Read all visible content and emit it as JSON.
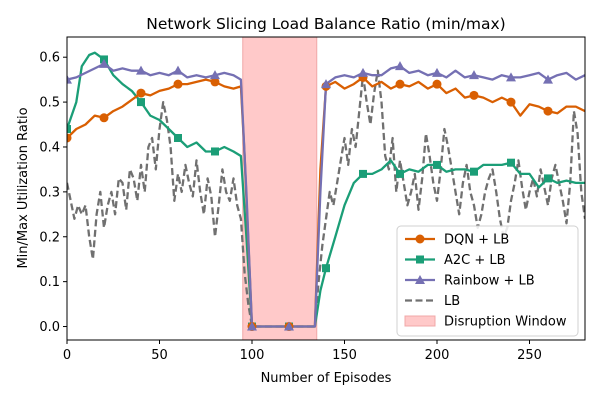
{
  "chart_data": {
    "type": "line",
    "title": "Network Slicing Load Balance Ratio (min/max)",
    "xlabel": "Number of Episodes",
    "ylabel": "Min/Max Utilization Ratio",
    "xlim": [
      0,
      280
    ],
    "ylim": [
      -0.03,
      0.645
    ],
    "xticks": [
      0,
      50,
      100,
      150,
      200,
      250
    ],
    "yticks": [
      0.0,
      0.1,
      0.2,
      0.3,
      0.4,
      0.5,
      0.6
    ],
    "grid": false,
    "legend_position": "lower-right",
    "shaded_region": {
      "label": "Disruption Window",
      "x_start": 95,
      "x_end": 135,
      "color": "#ffc9c9"
    },
    "series": [
      {
        "name": "DQN + LB",
        "color": "#d95f02",
        "style": "solid",
        "marker": "circle",
        "marker_every": 20,
        "points": [
          [
            0,
            0.42
          ],
          [
            5,
            0.44
          ],
          [
            10,
            0.45
          ],
          [
            15,
            0.47
          ],
          [
            20,
            0.465
          ],
          [
            25,
            0.48
          ],
          [
            30,
            0.49
          ],
          [
            35,
            0.505
          ],
          [
            40,
            0.52
          ],
          [
            45,
            0.515
          ],
          [
            50,
            0.525
          ],
          [
            55,
            0.53
          ],
          [
            60,
            0.54
          ],
          [
            65,
            0.54
          ],
          [
            70,
            0.545
          ],
          [
            75,
            0.55
          ],
          [
            80,
            0.545
          ],
          [
            85,
            0.535
          ],
          [
            90,
            0.53
          ],
          [
            94,
            0.535
          ],
          [
            96,
            0.38
          ],
          [
            100,
            0.0
          ],
          [
            105,
            0.0
          ],
          [
            110,
            0.0
          ],
          [
            115,
            0.0
          ],
          [
            120,
            0.0
          ],
          [
            125,
            0.0
          ],
          [
            130,
            0.0
          ],
          [
            134,
            0.0
          ],
          [
            137,
            0.35
          ],
          [
            140,
            0.535
          ],
          [
            145,
            0.545
          ],
          [
            150,
            0.53
          ],
          [
            155,
            0.54
          ],
          [
            160,
            0.555
          ],
          [
            165,
            0.535
          ],
          [
            170,
            0.545
          ],
          [
            175,
            0.53
          ],
          [
            180,
            0.54
          ],
          [
            185,
            0.535
          ],
          [
            190,
            0.545
          ],
          [
            195,
            0.53
          ],
          [
            200,
            0.54
          ],
          [
            205,
            0.52
          ],
          [
            210,
            0.53
          ],
          [
            215,
            0.51
          ],
          [
            220,
            0.515
          ],
          [
            225,
            0.51
          ],
          [
            230,
            0.5
          ],
          [
            235,
            0.51
          ],
          [
            240,
            0.5
          ],
          [
            245,
            0.47
          ],
          [
            250,
            0.495
          ],
          [
            255,
            0.49
          ],
          [
            260,
            0.48
          ],
          [
            265,
            0.475
          ],
          [
            270,
            0.49
          ],
          [
            275,
            0.49
          ],
          [
            280,
            0.48
          ]
        ]
      },
      {
        "name": "A2C + LB",
        "color": "#1b9e77",
        "style": "solid",
        "marker": "square",
        "marker_every": 20,
        "points": [
          [
            0,
            0.44
          ],
          [
            5,
            0.5
          ],
          [
            8,
            0.58
          ],
          [
            12,
            0.605
          ],
          [
            15,
            0.61
          ],
          [
            20,
            0.595
          ],
          [
            25,
            0.56
          ],
          [
            30,
            0.54
          ],
          [
            35,
            0.525
          ],
          [
            40,
            0.5
          ],
          [
            45,
            0.47
          ],
          [
            50,
            0.46
          ],
          [
            55,
            0.44
          ],
          [
            60,
            0.42
          ],
          [
            65,
            0.4
          ],
          [
            70,
            0.41
          ],
          [
            75,
            0.39
          ],
          [
            80,
            0.39
          ],
          [
            85,
            0.4
          ],
          [
            90,
            0.39
          ],
          [
            94,
            0.38
          ],
          [
            97,
            0.2
          ],
          [
            100,
            0.0
          ],
          [
            105,
            0.0
          ],
          [
            110,
            0.0
          ],
          [
            115,
            0.0
          ],
          [
            120,
            0.0
          ],
          [
            125,
            0.0
          ],
          [
            130,
            0.0
          ],
          [
            134,
            0.0
          ],
          [
            137,
            0.08
          ],
          [
            140,
            0.13
          ],
          [
            145,
            0.2
          ],
          [
            150,
            0.27
          ],
          [
            155,
            0.32
          ],
          [
            160,
            0.34
          ],
          [
            165,
            0.34
          ],
          [
            170,
            0.35
          ],
          [
            175,
            0.37
          ],
          [
            180,
            0.34
          ],
          [
            185,
            0.35
          ],
          [
            190,
            0.345
          ],
          [
            195,
            0.36
          ],
          [
            200,
            0.36
          ],
          [
            205,
            0.345
          ],
          [
            210,
            0.35
          ],
          [
            215,
            0.35
          ],
          [
            220,
            0.345
          ],
          [
            225,
            0.36
          ],
          [
            230,
            0.36
          ],
          [
            235,
            0.36
          ],
          [
            240,
            0.365
          ],
          [
            245,
            0.34
          ],
          [
            250,
            0.34
          ],
          [
            255,
            0.31
          ],
          [
            260,
            0.33
          ],
          [
            265,
            0.32
          ],
          [
            270,
            0.325
          ],
          [
            275,
            0.32
          ],
          [
            280,
            0.32
          ]
        ]
      },
      {
        "name": "Rainbow + LB",
        "color": "#7570b3",
        "style": "solid",
        "marker": "triangle",
        "marker_every": 20,
        "points": [
          [
            0,
            0.55
          ],
          [
            5,
            0.555
          ],
          [
            10,
            0.565
          ],
          [
            15,
            0.575
          ],
          [
            20,
            0.585
          ],
          [
            25,
            0.57
          ],
          [
            30,
            0.575
          ],
          [
            35,
            0.57
          ],
          [
            40,
            0.57
          ],
          [
            45,
            0.56
          ],
          [
            50,
            0.565
          ],
          [
            55,
            0.56
          ],
          [
            60,
            0.57
          ],
          [
            65,
            0.555
          ],
          [
            70,
            0.56
          ],
          [
            75,
            0.555
          ],
          [
            80,
            0.56
          ],
          [
            85,
            0.565
          ],
          [
            90,
            0.56
          ],
          [
            94,
            0.55
          ],
          [
            97,
            0.3
          ],
          [
            100,
            0.0
          ],
          [
            105,
            0.0
          ],
          [
            110,
            0.0
          ],
          [
            115,
            0.0
          ],
          [
            120,
            0.0
          ],
          [
            125,
            0.0
          ],
          [
            130,
            0.0
          ],
          [
            134,
            0.0
          ],
          [
            137,
            0.3
          ],
          [
            140,
            0.54
          ],
          [
            145,
            0.555
          ],
          [
            150,
            0.56
          ],
          [
            155,
            0.555
          ],
          [
            160,
            0.565
          ],
          [
            165,
            0.56
          ],
          [
            170,
            0.56
          ],
          [
            175,
            0.575
          ],
          [
            180,
            0.58
          ],
          [
            185,
            0.565
          ],
          [
            190,
            0.57
          ],
          [
            195,
            0.56
          ],
          [
            200,
            0.565
          ],
          [
            205,
            0.555
          ],
          [
            210,
            0.57
          ],
          [
            215,
            0.555
          ],
          [
            220,
            0.56
          ],
          [
            225,
            0.555
          ],
          [
            230,
            0.55
          ],
          [
            235,
            0.56
          ],
          [
            240,
            0.555
          ],
          [
            245,
            0.555
          ],
          [
            250,
            0.56
          ],
          [
            255,
            0.565
          ],
          [
            260,
            0.55
          ],
          [
            265,
            0.56
          ],
          [
            270,
            0.565
          ],
          [
            275,
            0.55
          ],
          [
            280,
            0.56
          ]
        ]
      },
      {
        "name": "LB",
        "color": "#707070",
        "style": "dashed",
        "marker": "none",
        "points": [
          [
            0,
            0.32
          ],
          [
            2,
            0.28
          ],
          [
            4,
            0.24
          ],
          [
            6,
            0.27
          ],
          [
            8,
            0.25
          ],
          [
            10,
            0.27
          ],
          [
            12,
            0.2
          ],
          [
            14,
            0.15
          ],
          [
            16,
            0.25
          ],
          [
            18,
            0.3
          ],
          [
            20,
            0.22
          ],
          [
            22,
            0.27
          ],
          [
            24,
            0.3
          ],
          [
            26,
            0.25
          ],
          [
            28,
            0.33
          ],
          [
            30,
            0.32
          ],
          [
            32,
            0.26
          ],
          [
            34,
            0.35
          ],
          [
            36,
            0.33
          ],
          [
            38,
            0.28
          ],
          [
            40,
            0.36
          ],
          [
            42,
            0.3
          ],
          [
            44,
            0.4
          ],
          [
            46,
            0.42
          ],
          [
            48,
            0.35
          ],
          [
            50,
            0.44
          ],
          [
            52,
            0.5
          ],
          [
            54,
            0.46
          ],
          [
            56,
            0.4
          ],
          [
            58,
            0.28
          ],
          [
            60,
            0.34
          ],
          [
            62,
            0.3
          ],
          [
            64,
            0.36
          ],
          [
            66,
            0.32
          ],
          [
            68,
            0.29
          ],
          [
            70,
            0.37
          ],
          [
            72,
            0.3
          ],
          [
            74,
            0.25
          ],
          [
            76,
            0.33
          ],
          [
            78,
            0.29
          ],
          [
            80,
            0.2
          ],
          [
            82,
            0.27
          ],
          [
            84,
            0.35
          ],
          [
            86,
            0.3
          ],
          [
            88,
            0.28
          ],
          [
            90,
            0.33
          ],
          [
            92,
            0.27
          ],
          [
            94,
            0.24
          ],
          [
            96,
            0.12
          ],
          [
            98,
            0.05
          ],
          [
            100,
            0.0
          ],
          [
            105,
            0.0
          ],
          [
            110,
            0.0
          ],
          [
            115,
            0.0
          ],
          [
            120,
            0.0
          ],
          [
            125,
            0.0
          ],
          [
            130,
            0.0
          ],
          [
            134,
            0.0
          ],
          [
            136,
            0.1
          ],
          [
            138,
            0.18
          ],
          [
            140,
            0.24
          ],
          [
            142,
            0.3
          ],
          [
            144,
            0.27
          ],
          [
            146,
            0.32
          ],
          [
            148,
            0.37
          ],
          [
            150,
            0.42
          ],
          [
            152,
            0.36
          ],
          [
            154,
            0.44
          ],
          [
            156,
            0.4
          ],
          [
            158,
            0.48
          ],
          [
            160,
            0.56
          ],
          [
            162,
            0.5
          ],
          [
            164,
            0.45
          ],
          [
            166,
            0.52
          ],
          [
            168,
            0.57
          ],
          [
            170,
            0.5
          ],
          [
            172,
            0.38
          ],
          [
            174,
            0.35
          ],
          [
            176,
            0.42
          ],
          [
            178,
            0.3
          ],
          [
            180,
            0.37
          ],
          [
            182,
            0.32
          ],
          [
            184,
            0.27
          ],
          [
            186,
            0.3
          ],
          [
            188,
            0.34
          ],
          [
            190,
            0.26
          ],
          [
            192,
            0.33
          ],
          [
            194,
            0.43
          ],
          [
            196,
            0.38
          ],
          [
            198,
            0.32
          ],
          [
            200,
            0.28
          ],
          [
            202,
            0.35
          ],
          [
            204,
            0.44
          ],
          [
            206,
            0.4
          ],
          [
            208,
            0.35
          ],
          [
            210,
            0.3
          ],
          [
            212,
            0.25
          ],
          [
            214,
            0.32
          ],
          [
            216,
            0.36
          ],
          [
            218,
            0.3
          ],
          [
            220,
            0.27
          ],
          [
            222,
            0.22
          ],
          [
            224,
            0.25
          ],
          [
            226,
            0.3
          ],
          [
            228,
            0.33
          ],
          [
            230,
            0.35
          ],
          [
            232,
            0.3
          ],
          [
            234,
            0.24
          ],
          [
            236,
            0.2
          ],
          [
            238,
            0.22
          ],
          [
            240,
            0.28
          ],
          [
            242,
            0.32
          ],
          [
            244,
            0.37
          ],
          [
            246,
            0.31
          ],
          [
            248,
            0.26
          ],
          [
            250,
            0.3
          ],
          [
            252,
            0.33
          ],
          [
            254,
            0.29
          ],
          [
            256,
            0.35
          ],
          [
            258,
            0.31
          ],
          [
            260,
            0.27
          ],
          [
            262,
            0.33
          ],
          [
            264,
            0.36
          ],
          [
            266,
            0.32
          ],
          [
            268,
            0.28
          ],
          [
            270,
            0.23
          ],
          [
            272,
            0.32
          ],
          [
            274,
            0.48
          ],
          [
            276,
            0.43
          ],
          [
            278,
            0.3
          ],
          [
            280,
            0.24
          ]
        ]
      }
    ]
  }
}
